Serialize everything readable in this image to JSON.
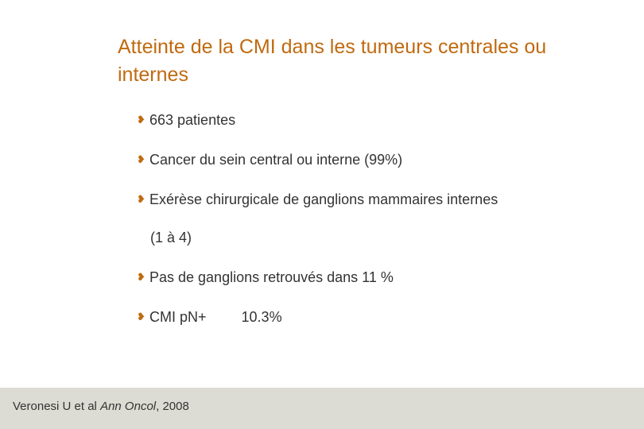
{
  "title": "Atteinte de la CMI dans les tumeurs centrales ou internes",
  "bullet_glyph": "❥",
  "bullets": [
    {
      "text": "663 patientes"
    },
    {
      "text": "Cancer du sein central ou interne (99%)"
    },
    {
      "text": "Exérèse chirurgicale de ganglions mammaires internes",
      "continuation": "(1 à 4)"
    },
    {
      "text": "Pas de ganglions retrouvés dans 11 %"
    },
    {
      "text": "CMI pN+",
      "value": "10.3%"
    }
  ],
  "citation": {
    "authors": "Veronesi U et al",
    "journal": "Ann Oncol",
    "year": ", 2008"
  },
  "colors": {
    "title": "#c06a10",
    "footer_band": "#dcdcd4"
  }
}
